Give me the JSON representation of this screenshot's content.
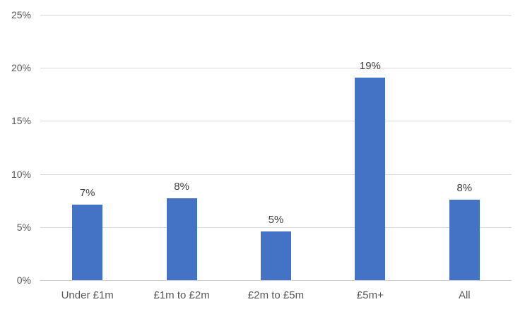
{
  "chart_data": {
    "type": "bar",
    "title": "",
    "categories": [
      "Under £1m",
      "£1m to £2m",
      "£2m to £5m",
      "£5m+",
      "All"
    ],
    "values": [
      7.1,
      7.7,
      4.6,
      19.1,
      7.6
    ],
    "data_labels": [
      "7%",
      "8%",
      "5%",
      "19%",
      "8%"
    ],
    "xlabel": "",
    "ylabel": "",
    "ylim": [
      0,
      25
    ],
    "y_tick_values": [
      0,
      5,
      10,
      15,
      20,
      25
    ],
    "y_tick_labels": [
      "0%",
      "5%",
      "10%",
      "15%",
      "20%",
      "25%"
    ],
    "grid": true,
    "legend_position": "none",
    "colors": {
      "bar_fill": "#4472C4",
      "gridline": "#D9D9D9",
      "axis_line": "#D0CECE",
      "axis_label": "#595959",
      "data_label": "#404040"
    }
  }
}
